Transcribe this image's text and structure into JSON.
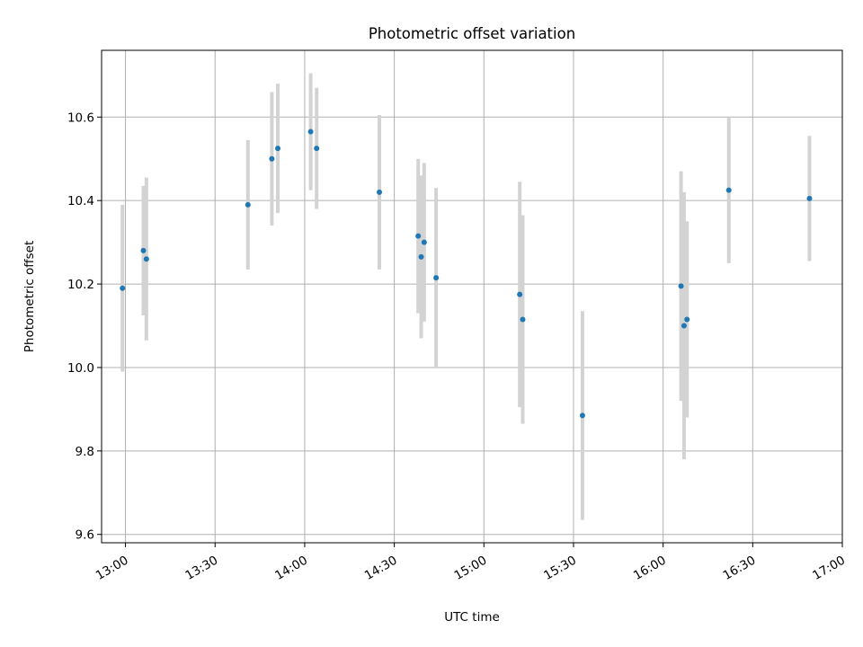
{
  "chart_data": {
    "type": "scatter",
    "title": "Photometric offset variation",
    "xlabel": "UTC time",
    "ylabel": "Photometric offset",
    "x_ticks": [
      "13:00",
      "13:30",
      "14:00",
      "14:30",
      "15:00",
      "15:30",
      "16:00",
      "16:30",
      "17:00"
    ],
    "y_ticks": [
      "9.6",
      "9.8",
      "10.0",
      "10.2",
      "10.4",
      "10.6"
    ],
    "xlim": [
      "12:52",
      "17:00"
    ],
    "ylim": [
      9.58,
      10.76
    ],
    "grid": true,
    "colors": {
      "point": "#1f77b4",
      "errorbar": "#d3d3d3",
      "grid": "#b0b0b0"
    },
    "series": [
      {
        "points": [
          {
            "time": "12:59",
            "y": 10.19,
            "err": 0.2
          },
          {
            "time": "13:06",
            "y": 10.28,
            "err": 0.155
          },
          {
            "time": "13:07",
            "y": 10.26,
            "err": 0.195
          },
          {
            "time": "13:41",
            "y": 10.39,
            "err": 0.155
          },
          {
            "time": "13:49",
            "y": 10.5,
            "err": 0.16
          },
          {
            "time": "13:51",
            "y": 10.525,
            "err": 0.155
          },
          {
            "time": "14:02",
            "y": 10.565,
            "err": 0.14
          },
          {
            "time": "14:04",
            "y": 10.525,
            "err": 0.145
          },
          {
            "time": "14:25",
            "y": 10.42,
            "err": 0.185
          },
          {
            "time": "14:38",
            "y": 10.315,
            "err": 0.185
          },
          {
            "time": "14:39",
            "y": 10.265,
            "err": 0.195
          },
          {
            "time": "14:40",
            "y": 10.3,
            "err": 0.19
          },
          {
            "time": "14:44",
            "y": 10.215,
            "err": 0.215
          },
          {
            "time": "15:12",
            "y": 10.175,
            "err": 0.27
          },
          {
            "time": "15:13",
            "y": 10.115,
            "err": 0.25
          },
          {
            "time": "15:33",
            "y": 9.885,
            "err": 0.25
          },
          {
            "time": "16:06",
            "y": 10.195,
            "err": 0.275
          },
          {
            "time": "16:07",
            "y": 10.1,
            "err": 0.32
          },
          {
            "time": "16:08",
            "y": 10.115,
            "err": 0.235
          },
          {
            "time": "16:22",
            "y": 10.425,
            "err": 0.175
          },
          {
            "time": "16:49",
            "y": 10.405,
            "err": 0.15
          }
        ]
      }
    ]
  }
}
